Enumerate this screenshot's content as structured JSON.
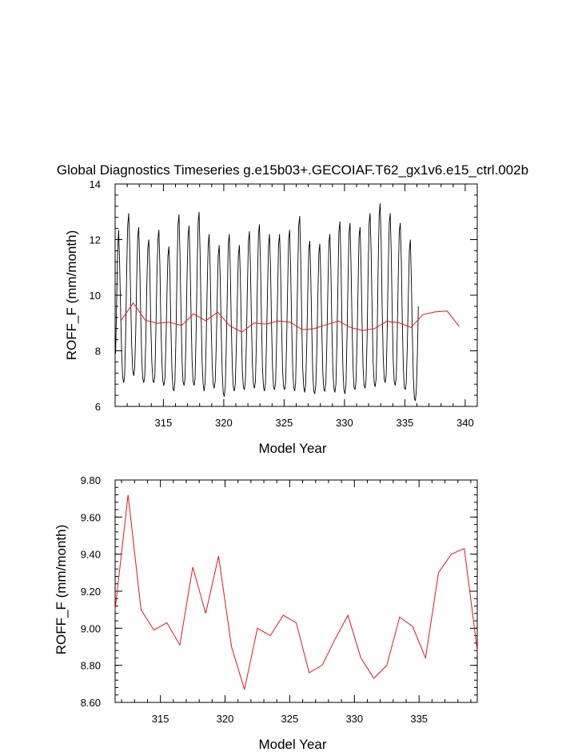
{
  "figure_title": "Global Diagnostics Timeseries g.e15b03+.GECOIAF.T62_gx1v6.e15_ctrl.002b",
  "colors": {
    "monthly": "#000000",
    "annual": "#e8141a",
    "axes": "#000000"
  },
  "chart_data": [
    {
      "type": "line",
      "title": "Global Diagnostics Timeseries g.e15b03+.GECOIAF.T62_gx1v6.e15_ctrl.002b",
      "xlabel": "Model Year",
      "ylabel": "ROFF_F (mm/month)",
      "xlim": [
        311,
        341
      ],
      "ylim": [
        6,
        14
      ],
      "x_ticks": [
        "315",
        "320",
        "325",
        "330",
        "335",
        "340"
      ],
      "y_ticks": [
        "6",
        "8",
        "10",
        "12",
        "14"
      ],
      "grid": false,
      "series": [
        {
          "x_start": 311.04,
          "x_step": 0.08333,
          "values": [
            7.9,
            9.7,
            11.6,
            12.35,
            11.2,
            9.4,
            7.9,
            7.05,
            6.85,
            7.1,
            8.6,
            10.8,
            12.5,
            12.95,
            11.8,
            9.8,
            8.2,
            7.3,
            7.1,
            7.4,
            8.7,
            10.6,
            12.1,
            12.45,
            11.1,
            9.2,
            7.7,
            7.0,
            6.85,
            7.1,
            8.4,
            10.3,
            11.7,
            12.0,
            10.9,
            9.0,
            7.6,
            6.95,
            6.85,
            7.1,
            8.6,
            10.6,
            12.0,
            12.35,
            11.1,
            9.0,
            7.6,
            6.9,
            6.75,
            7.0,
            8.2,
            10.0,
            11.4,
            11.75,
            10.7,
            8.8,
            7.3,
            6.65,
            6.55,
            6.9,
            8.5,
            10.8,
            12.5,
            12.9,
            11.5,
            9.4,
            7.7,
            6.9,
            6.75,
            7.0,
            8.5,
            10.6,
            12.1,
            12.5,
            11.3,
            9.3,
            7.7,
            6.9,
            6.75,
            7.0,
            8.6,
            10.8,
            12.6,
            13.0,
            11.5,
            9.3,
            7.6,
            6.8,
            6.55,
            6.85,
            8.2,
            10.2,
            11.8,
            12.2,
            11.0,
            9.0,
            7.5,
            6.8,
            6.65,
            6.9,
            8.1,
            9.9,
            11.4,
            11.8,
            10.6,
            8.7,
            7.2,
            6.5,
            6.35,
            6.7,
            8.1,
            10.0,
            11.8,
            12.2,
            11.0,
            9.0,
            7.4,
            6.7,
            6.55,
            6.8,
            8.1,
            9.9,
            11.4,
            11.8,
            10.7,
            8.8,
            7.3,
            6.7,
            6.6,
            6.9,
            8.3,
            10.2,
            11.9,
            12.3,
            11.1,
            9.1,
            7.5,
            6.8,
            6.65,
            6.9,
            8.4,
            10.5,
            12.2,
            12.55,
            11.2,
            9.1,
            7.4,
            6.7,
            6.55,
            6.85,
            8.2,
            10.1,
            11.8,
            12.2,
            11.0,
            9.0,
            7.4,
            6.7,
            6.6,
            6.85,
            8.2,
            10.0,
            11.8,
            12.2,
            10.9,
            8.9,
            7.3,
            6.7,
            6.6,
            6.85,
            8.3,
            10.3,
            12.0,
            12.35,
            11.0,
            9.0,
            7.4,
            6.7,
            6.55,
            6.85,
            8.6,
            10.8,
            12.5,
            12.85,
            11.4,
            9.2,
            7.4,
            6.7,
            6.5,
            6.8,
            8.2,
            10.0,
            11.6,
            11.95,
            10.7,
            8.8,
            7.2,
            6.55,
            6.45,
            6.75,
            8.0,
            9.9,
            11.5,
            11.85,
            10.6,
            8.7,
            7.2,
            6.6,
            6.55,
            6.85,
            8.2,
            10.2,
            11.9,
            12.2,
            10.9,
            8.9,
            7.3,
            6.65,
            6.5,
            6.8,
            8.3,
            10.4,
            12.3,
            12.65,
            11.2,
            9.0,
            7.3,
            6.6,
            6.45,
            6.8,
            8.4,
            10.5,
            12.2,
            12.6,
            11.2,
            9.1,
            7.4,
            6.7,
            6.6,
            6.9,
            8.3,
            10.3,
            12.1,
            12.45,
            11.1,
            9.0,
            7.4,
            6.75,
            6.65,
            6.95,
            8.5,
            10.7,
            12.6,
            12.95,
            11.6,
            9.4,
            7.6,
            6.85,
            6.7,
            7.0,
            8.6,
            11.0,
            12.9,
            13.3,
            11.9,
            9.6,
            7.8,
            7.0,
            6.85,
            7.15,
            8.7,
            10.9,
            12.6,
            12.95,
            11.5,
            9.4,
            7.6,
            6.9,
            6.75,
            7.05,
            8.6,
            10.7,
            12.3,
            12.6,
            11.2,
            9.1,
            7.4,
            6.7,
            6.6,
            6.85,
            8.2,
            10.0,
            11.6,
            12.0,
            10.6,
            8.6,
            7.0,
            6.3,
            6.2,
            6.6,
            7.9,
            9.6
          ]
        },
        {
          "x": [
            311.5,
            312.5,
            313.5,
            314.5,
            315.5,
            316.5,
            317.5,
            318.5,
            319.5,
            320.5,
            321.5,
            322.5,
            323.5,
            324.5,
            325.5,
            326.5,
            327.5,
            328.5,
            329.5,
            330.5,
            331.5,
            332.5,
            333.5,
            334.5,
            335.5,
            336.5,
            337.5,
            338.5,
            339.5
          ],
          "values": [
            9.1,
            9.72,
            9.1,
            8.99,
            9.03,
            8.91,
            9.33,
            9.08,
            9.39,
            8.9,
            8.67,
            9.0,
            8.96,
            9.07,
            9.03,
            8.76,
            8.8,
            8.94,
            9.07,
            8.84,
            8.73,
            8.8,
            9.06,
            9.01,
            8.84,
            9.3,
            9.4,
            9.43,
            8.88
          ]
        }
      ]
    },
    {
      "type": "line",
      "xlabel": "Model Year",
      "ylabel": "ROFF_F (mm/month)",
      "xlim": [
        311.5,
        339.5
      ],
      "ylim": [
        8.6,
        9.8
      ],
      "x_ticks": [
        "315",
        "320",
        "325",
        "330",
        "335"
      ],
      "y_ticks": [
        "8.60",
        "8.80",
        "9.00",
        "9.20",
        "9.40",
        "9.60",
        "9.80"
      ],
      "grid": false,
      "series": [
        {
          "x": [
            311.5,
            312.5,
            313.5,
            314.5,
            315.5,
            316.5,
            317.5,
            318.5,
            319.5,
            320.5,
            321.5,
            322.5,
            323.5,
            324.5,
            325.5,
            326.5,
            327.5,
            328.5,
            329.5,
            330.5,
            331.5,
            332.5,
            333.5,
            334.5,
            335.5,
            336.5,
            337.5,
            338.5,
            339.5
          ],
          "values": [
            9.1,
            9.72,
            9.1,
            8.99,
            9.03,
            8.91,
            9.33,
            9.08,
            9.39,
            8.9,
            8.67,
            9.0,
            8.96,
            9.07,
            9.03,
            8.76,
            8.8,
            8.94,
            9.07,
            8.84,
            8.73,
            8.8,
            9.06,
            9.01,
            8.84,
            9.3,
            9.4,
            9.43,
            8.88
          ]
        }
      ]
    }
  ]
}
